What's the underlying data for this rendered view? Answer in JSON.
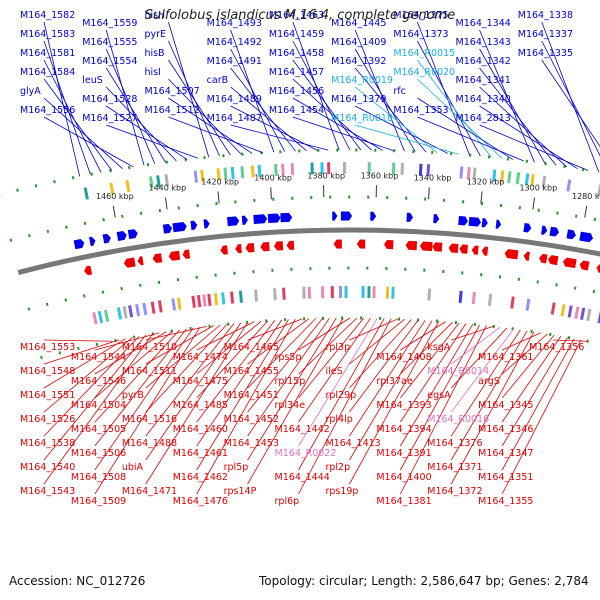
{
  "title": "Sulfolobus islandicus M.16.4, complete genome",
  "footer": {
    "accession": "Accession: NC_012726",
    "stats": "Topology: circular; Length: 2,586,647 bp; Genes: 2,784"
  },
  "colors": {
    "forward_gene": "#0000ee",
    "reverse_gene": "#ee0000",
    "rna_forward": "#1ab0e0",
    "rna_reverse": "#ee88cc",
    "backbone": "#888888",
    "ticks": "#229922"
  },
  "scale_labels": [
    "1460 kbp",
    "1440 kbp",
    "1420 kbp",
    "1400 kbp",
    "1380 kbp",
    "1360 kbp",
    "1340 kbp",
    "1320 kbp",
    "1300 kbp",
    "1280 kbp"
  ],
  "top_labels": [
    {
      "text": "M164_1582",
      "color": "blue"
    },
    {
      "text": "M164_1583",
      "color": "blue"
    },
    {
      "text": "M164_1581",
      "color": "blue"
    },
    {
      "text": "M164_1584",
      "color": "blue"
    },
    {
      "text": "glyA",
      "color": "blue"
    },
    {
      "text": "M164_1556",
      "color": "blue"
    },
    {
      "text": "M164_1559",
      "color": "blue"
    },
    {
      "text": "M164_1555",
      "color": "blue"
    },
    {
      "text": "M164_1554",
      "color": "blue"
    },
    {
      "text": "leuS",
      "color": "blue"
    },
    {
      "text": "M164_1528",
      "color": "blue"
    },
    {
      "text": "M164_1527",
      "color": "blue"
    },
    {
      "text": "hisH",
      "color": "blue"
    },
    {
      "text": "pyrE",
      "color": "blue"
    },
    {
      "text": "hisB",
      "color": "blue"
    },
    {
      "text": "hisI",
      "color": "blue"
    },
    {
      "text": "M164_1507",
      "color": "blue"
    },
    {
      "text": "M164_1512",
      "color": "blue"
    },
    {
      "text": "M164_1493",
      "color": "blue"
    },
    {
      "text": "M164_1492",
      "color": "blue"
    },
    {
      "text": "M164_1491",
      "color": "blue"
    },
    {
      "text": "carB",
      "color": "blue"
    },
    {
      "text": "M164_1489",
      "color": "blue"
    },
    {
      "text": "M164_1487",
      "color": "blue"
    },
    {
      "text": "M164_1463",
      "color": "blue"
    },
    {
      "text": "M164_1459",
      "color": "blue"
    },
    {
      "text": "M164_1458",
      "color": "blue"
    },
    {
      "text": "M164_1457",
      "color": "blue"
    },
    {
      "text": "M164_1456",
      "color": "blue"
    },
    {
      "text": "M164_1454",
      "color": "blue"
    },
    {
      "text": "M164_1445",
      "color": "blue"
    },
    {
      "text": "M164_1409",
      "color": "blue"
    },
    {
      "text": "M164_1392",
      "color": "blue"
    },
    {
      "text": "M164_R0019",
      "color": "cyan"
    },
    {
      "text": "M164_1379",
      "color": "blue"
    },
    {
      "text": "M164_R0018",
      "color": "cyan"
    },
    {
      "text": "M164_1375",
      "color": "blue"
    },
    {
      "text": "M164_1373",
      "color": "blue"
    },
    {
      "text": "M164_R0015",
      "color": "cyan"
    },
    {
      "text": "M164_R0020",
      "color": "cyan"
    },
    {
      "text": "rfc",
      "color": "blue"
    },
    {
      "text": "M164_1353",
      "color": "blue"
    },
    {
      "text": "M164_1344",
      "color": "blue"
    },
    {
      "text": "M164_1343",
      "color": "blue"
    },
    {
      "text": "M164_1342",
      "color": "blue"
    },
    {
      "text": "M164_1341",
      "color": "blue"
    },
    {
      "text": "M164_1340",
      "color": "blue"
    },
    {
      "text": "M164_2813",
      "color": "blue"
    },
    {
      "text": "M164_1338",
      "color": "blue"
    },
    {
      "text": "M164_1337",
      "color": "blue"
    },
    {
      "text": "M164_1335",
      "color": "blue"
    }
  ],
  "bottom_labels": [
    {
      "text": "M164_1553",
      "color": "red"
    },
    {
      "text": "M164_1548",
      "color": "red"
    },
    {
      "text": "M164_1551",
      "color": "red"
    },
    {
      "text": "M164_1526",
      "color": "red"
    },
    {
      "text": "M164_1538",
      "color": "red"
    },
    {
      "text": "M164_1540",
      "color": "red"
    },
    {
      "text": "M164_1543",
      "color": "red"
    },
    {
      "text": "M164_1544",
      "color": "red"
    },
    {
      "text": "M164_1546",
      "color": "red"
    },
    {
      "text": "M164_1504",
      "color": "red"
    },
    {
      "text": "M164_1505",
      "color": "red"
    },
    {
      "text": "M164_1506",
      "color": "red"
    },
    {
      "text": "M164_1508",
      "color": "red"
    },
    {
      "text": "M164_1509",
      "color": "red"
    },
    {
      "text": "M164_1510",
      "color": "red"
    },
    {
      "text": "M164_1511",
      "color": "red"
    },
    {
      "text": "pyrB",
      "color": "red"
    },
    {
      "text": "M164_1516",
      "color": "red"
    },
    {
      "text": "M164_1488",
      "color": "red"
    },
    {
      "text": "ubiA",
      "color": "red"
    },
    {
      "text": "M164_1471",
      "color": "red"
    },
    {
      "text": "M164_1474",
      "color": "red"
    },
    {
      "text": "M164_1475",
      "color": "red"
    },
    {
      "text": "M164_1485",
      "color": "red"
    },
    {
      "text": "M164_1460",
      "color": "red"
    },
    {
      "text": "M164_1461",
      "color": "red"
    },
    {
      "text": "M164_1462",
      "color": "red"
    },
    {
      "text": "M164_1476",
      "color": "red"
    },
    {
      "text": "M164_1465",
      "color": "red"
    },
    {
      "text": "M164_1455",
      "color": "red"
    },
    {
      "text": "M164_1451",
      "color": "red"
    },
    {
      "text": "M164_1452",
      "color": "red"
    },
    {
      "text": "M164_1453",
      "color": "red"
    },
    {
      "text": "rpl5p",
      "color": "red"
    },
    {
      "text": "rps14P",
      "color": "red"
    },
    {
      "text": "rps5p",
      "color": "red"
    },
    {
      "text": "rpl15p",
      "color": "red"
    },
    {
      "text": "rpl34e",
      "color": "red"
    },
    {
      "text": "M164_1442",
      "color": "red"
    },
    {
      "text": "M164_R0022",
      "color": "pink"
    },
    {
      "text": "M164_1444",
      "color": "red"
    },
    {
      "text": "rpl6p",
      "color": "red"
    },
    {
      "text": "rpl3p",
      "color": "red"
    },
    {
      "text": "ileS",
      "color": "red"
    },
    {
      "text": "rpl29p",
      "color": "red"
    },
    {
      "text": "rpl4lp",
      "color": "red"
    },
    {
      "text": "M164_1413",
      "color": "red"
    },
    {
      "text": "rpl2p",
      "color": "red"
    },
    {
      "text": "rps19p",
      "color": "red"
    },
    {
      "text": "M164_1408",
      "color": "red"
    },
    {
      "text": "rpl37ae",
      "color": "red"
    },
    {
      "text": "M164_1393",
      "color": "red"
    },
    {
      "text": "M164_1394",
      "color": "red"
    },
    {
      "text": "M164_1391",
      "color": "red"
    },
    {
      "text": "M164_1400",
      "color": "red"
    },
    {
      "text": "M164_1381",
      "color": "red"
    },
    {
      "text": "ksgA",
      "color": "red"
    },
    {
      "text": "M164_R0014",
      "color": "pink"
    },
    {
      "text": "egsA",
      "color": "red"
    },
    {
      "text": "M164_R0016",
      "color": "pink"
    },
    {
      "text": "M164_1376",
      "color": "red"
    },
    {
      "text": "M164_1371",
      "color": "red"
    },
    {
      "text": "M164_1372",
      "color": "red"
    },
    {
      "text": "M164_1361",
      "color": "red"
    },
    {
      "text": "argS",
      "color": "red"
    },
    {
      "text": "M164_1345",
      "color": "red"
    },
    {
      "text": "M164_1346",
      "color": "red"
    },
    {
      "text": "M164_1347",
      "color": "red"
    },
    {
      "text": "M164_1351",
      "color": "red"
    },
    {
      "text": "M164_1355",
      "color": "red"
    },
    {
      "text": "M164_1356",
      "color": "red"
    }
  ]
}
